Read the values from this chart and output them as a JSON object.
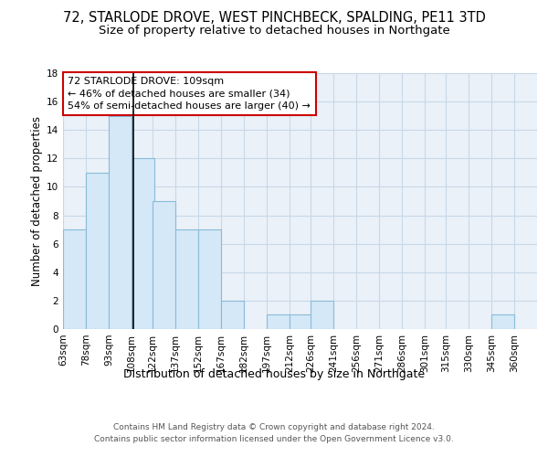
{
  "title1": "72, STARLODE DROVE, WEST PINCHBECK, SPALDING, PE11 3TD",
  "title2": "Size of property relative to detached houses in Northgate",
  "xlabel": "Distribution of detached houses by size in Northgate",
  "ylabel": "Number of detached properties",
  "bins": [
    63,
    78,
    93,
    108,
    122,
    137,
    152,
    167,
    182,
    197,
    212,
    226,
    241,
    256,
    271,
    286,
    301,
    315,
    330,
    345,
    360
  ],
  "values": [
    7,
    11,
    15,
    12,
    9,
    7,
    7,
    2,
    0,
    1,
    1,
    2,
    0,
    0,
    0,
    0,
    0,
    0,
    0,
    1,
    0
  ],
  "bin_width": 15,
  "property_size": 109,
  "bar_color": "#d4e8f7",
  "bar_edge_color": "#8bbbd8",
  "line_color": "#000000",
  "annotation_text": "72 STARLODE DROVE: 109sqm\n← 46% of detached houses are smaller (34)\n54% of semi-detached houses are larger (40) →",
  "annotation_box_color": "#ffffff",
  "annotation_box_edge": "#cc0000",
  "ylim": [
    0,
    18
  ],
  "yticks": [
    0,
    2,
    4,
    6,
    8,
    10,
    12,
    14,
    16,
    18
  ],
  "footer1": "Contains HM Land Registry data © Crown copyright and database right 2024.",
  "footer2": "Contains public sector information licensed under the Open Government Licence v3.0.",
  "bg_color": "#eaf1f8",
  "title1_fontsize": 10.5,
  "title2_fontsize": 9.5,
  "xlabel_fontsize": 9,
  "ylabel_fontsize": 8.5,
  "footer_fontsize": 6.5,
  "tick_fontsize": 7.5,
  "annot_fontsize": 8
}
